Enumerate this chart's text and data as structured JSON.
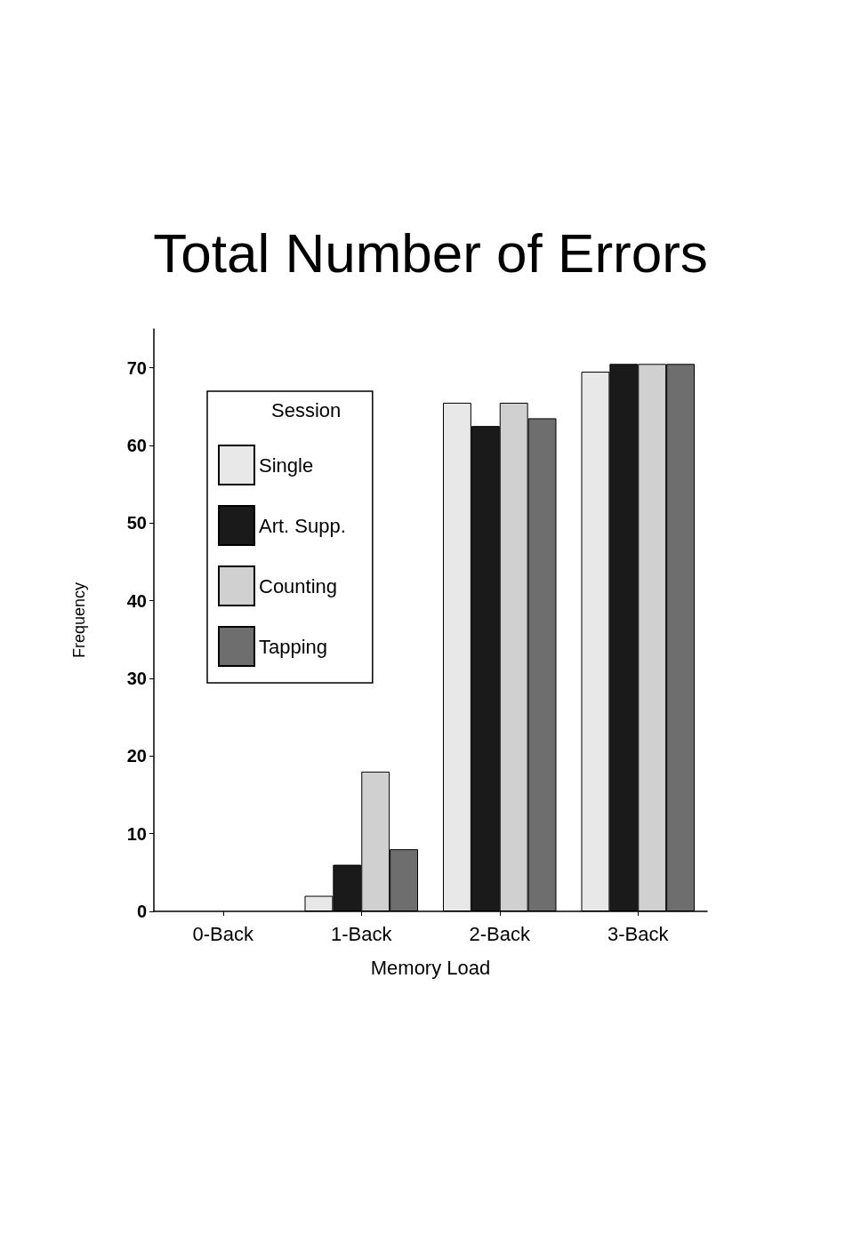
{
  "chart_data": {
    "type": "bar",
    "title": "Total Number of Errors",
    "xlabel": "Memory Load",
    "ylabel": "Frequency",
    "legend_title": "Session",
    "categories": [
      "0-Back",
      "1-Back",
      "2-Back",
      "3-Back"
    ],
    "series": [
      {
        "name": "Single",
        "color": "#e8e8e8",
        "values": [
          0,
          2,
          65.5,
          69.5
        ]
      },
      {
        "name": "Art. Supp.",
        "color": "#1a1a1a",
        "values": [
          0,
          6,
          62.5,
          70.5
        ]
      },
      {
        "name": "Counting",
        "color": "#d0d0d0",
        "values": [
          0,
          18,
          65.5,
          70.5
        ]
      },
      {
        "name": "Tapping",
        "color": "#6e6e6e",
        "values": [
          0,
          8,
          63.5,
          70.5
        ]
      }
    ],
    "ylim": [
      0,
      75
    ],
    "yticks": [
      0,
      10,
      20,
      30,
      40,
      50,
      60,
      70
    ],
    "grid": false,
    "legend": "top left"
  }
}
